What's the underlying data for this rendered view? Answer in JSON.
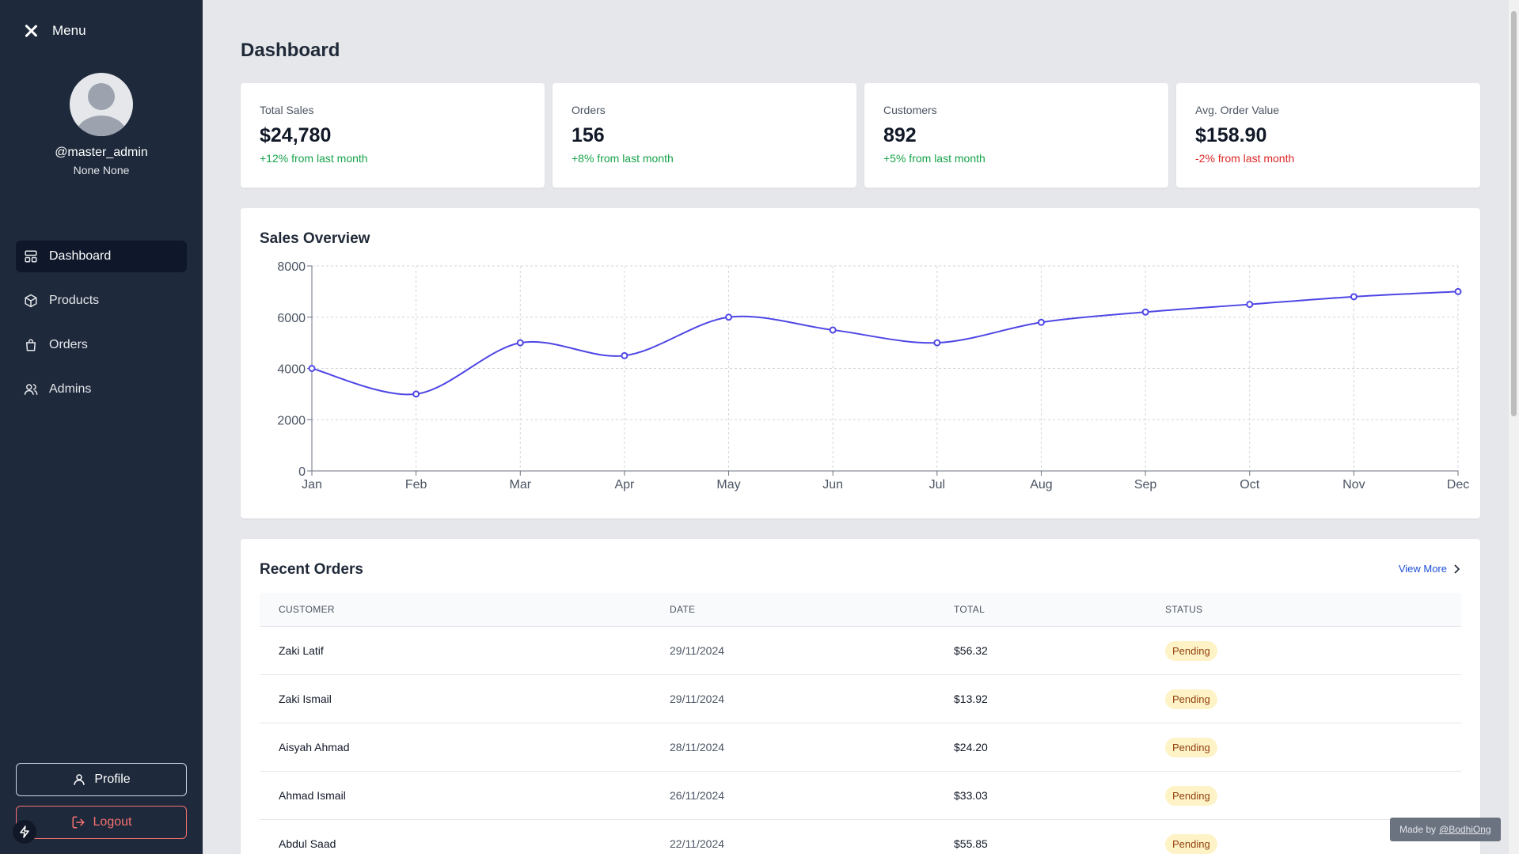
{
  "sidebar": {
    "menu_label": "Menu",
    "username": "@master_admin",
    "fullname": "None None",
    "items": [
      {
        "label": "Dashboard",
        "icon": "dashboard-icon",
        "active": true
      },
      {
        "label": "Products",
        "icon": "box-icon",
        "active": false
      },
      {
        "label": "Orders",
        "icon": "shopping-bag-icon",
        "active": false
      },
      {
        "label": "Admins",
        "icon": "users-icon",
        "active": false
      }
    ],
    "profile_label": "Profile",
    "logout_label": "Logout"
  },
  "page": {
    "title": "Dashboard"
  },
  "stats": [
    {
      "label": "Total Sales",
      "value": "$24,780",
      "change": "+12% from last month",
      "trend": "up"
    },
    {
      "label": "Orders",
      "value": "156",
      "change": "+8% from last month",
      "trend": "up"
    },
    {
      "label": "Customers",
      "value": "892",
      "change": "+5% from last month",
      "trend": "up"
    },
    {
      "label": "Avg. Order Value",
      "value": "$158.90",
      "change": "-2% from last month",
      "trend": "down"
    }
  ],
  "sales_overview": {
    "title": "Sales Overview"
  },
  "chart_data": {
    "type": "line",
    "categories": [
      "Jan",
      "Feb",
      "Mar",
      "Apr",
      "May",
      "Jun",
      "Jul",
      "Aug",
      "Sep",
      "Oct",
      "Nov",
      "Dec"
    ],
    "values": [
      4000,
      3000,
      5000,
      4500,
      6000,
      5500,
      5000,
      5800,
      6200,
      6500,
      6800,
      7000
    ],
    "yticks": [
      0,
      2000,
      4000,
      6000,
      8000
    ],
    "ylim": [
      0,
      8000
    ],
    "grid": true,
    "line_color": "#4f46e5"
  },
  "recent_orders": {
    "title": "Recent Orders",
    "view_more": "View More",
    "columns": [
      "CUSTOMER",
      "DATE",
      "TOTAL",
      "STATUS"
    ],
    "rows": [
      {
        "customer": "Zaki Latif",
        "date": "29/11/2024",
        "total": "$56.32",
        "status": "Pending"
      },
      {
        "customer": "Zaki Ismail",
        "date": "29/11/2024",
        "total": "$13.92",
        "status": "Pending"
      },
      {
        "customer": "Aisyah Ahmad",
        "date": "28/11/2024",
        "total": "$24.20",
        "status": "Pending"
      },
      {
        "customer": "Ahmad Ismail",
        "date": "26/11/2024",
        "total": "$33.03",
        "status": "Pending"
      },
      {
        "customer": "Abdul Saad",
        "date": "22/11/2024",
        "total": "$55.85",
        "status": "Pending"
      }
    ]
  },
  "footer": {
    "made_by_prefix": "Made by",
    "made_by_link": "@BodhiOng"
  }
}
